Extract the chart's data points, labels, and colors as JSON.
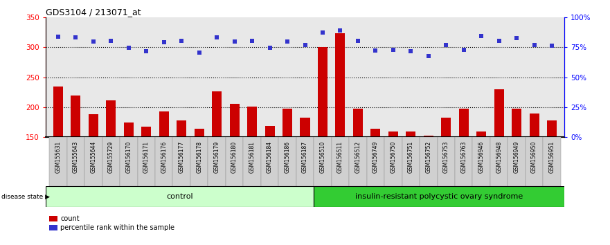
{
  "title": "GDS3104 / 213071_at",
  "samples": [
    "GSM155631",
    "GSM155643",
    "GSM155644",
    "GSM155729",
    "GSM156170",
    "GSM156171",
    "GSM156176",
    "GSM156177",
    "GSM156178",
    "GSM156179",
    "GSM156180",
    "GSM156181",
    "GSM156184",
    "GSM156186",
    "GSM156187",
    "GSM156510",
    "GSM156511",
    "GSM156512",
    "GSM156749",
    "GSM156750",
    "GSM156751",
    "GSM156752",
    "GSM156753",
    "GSM156763",
    "GSM156946",
    "GSM156948",
    "GSM156949",
    "GSM156950",
    "GSM156951"
  ],
  "counts": [
    235,
    219,
    188,
    211,
    175,
    167,
    193,
    178,
    164,
    226,
    206,
    201,
    169,
    197,
    183,
    300,
    323,
    198,
    164,
    160,
    160,
    153,
    183,
    197,
    160,
    230,
    197,
    190,
    178
  ],
  "percentiles_left_scale": [
    317,
    316,
    309,
    311,
    299,
    293,
    308,
    311,
    291,
    316,
    309,
    310,
    299,
    309,
    304,
    324,
    328,
    311,
    294,
    295,
    293,
    285,
    304,
    295,
    319,
    311,
    315,
    304,
    303
  ],
  "group_labels": [
    "control",
    "insulin-resistant polycystic ovary syndrome"
  ],
  "group_split": 15,
  "n_samples": 29,
  "ylim_left": [
    150,
    350
  ],
  "ylim_right": [
    0,
    100
  ],
  "yticks_left": [
    150,
    200,
    250,
    300,
    350
  ],
  "yticks_right": [
    0,
    25,
    50,
    75,
    100
  ],
  "hlines": [
    200,
    250,
    300
  ],
  "bar_color": "#CC0000",
  "dot_color": "#3333CC",
  "group1_color": "#CCFFCC",
  "group2_color": "#33CC33",
  "axis_bg_color": "#E8E8E8",
  "legend_bar_label": "count",
  "legend_dot_label": "percentile rank within the sample",
  "disease_state_label": "disease state"
}
